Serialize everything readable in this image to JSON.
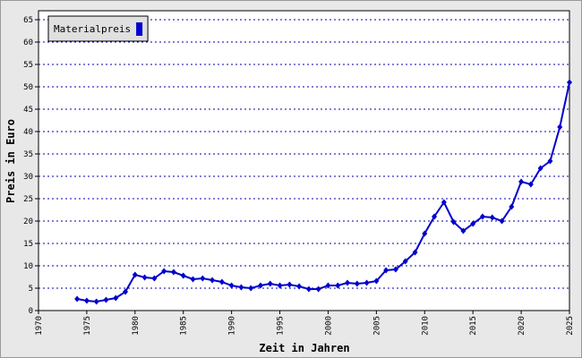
{
  "chart_data": {
    "type": "line",
    "x_label": "Zeit in Jahren",
    "y_label": "Preis in Euro",
    "x": [
      1974,
      1975,
      1976,
      1977,
      1978,
      1979,
      1980,
      1981,
      1982,
      1983,
      1984,
      1985,
      1986,
      1987,
      1988,
      1989,
      1990,
      1991,
      1992,
      1993,
      1994,
      1995,
      1996,
      1997,
      1998,
      1999,
      2000,
      2001,
      2002,
      2003,
      2004,
      2005,
      2006,
      2007,
      2008,
      2009,
      2010,
      2011,
      2012,
      2013,
      2014,
      2015,
      2016,
      2017,
      2018,
      2019,
      2020,
      2021,
      2022,
      2023,
      2024,
      2025
    ],
    "series": [
      {
        "name": "Materialpreis",
        "color": "#0000cc",
        "values": [
          2.6,
          2.2,
          2.0,
          2.4,
          2.8,
          4.2,
          8.0,
          7.4,
          7.2,
          8.8,
          8.6,
          7.8,
          7.0,
          7.2,
          6.8,
          6.4,
          5.6,
          5.2,
          5.0,
          5.6,
          6.0,
          5.6,
          5.8,
          5.4,
          4.8,
          4.8,
          5.6,
          5.6,
          6.2,
          6.0,
          6.2,
          6.6,
          9.0,
          9.2,
          11.0,
          13.0,
          17.2,
          21.0,
          24.2,
          19.8,
          17.8,
          19.4,
          21.0,
          20.8,
          20.0,
          23.2,
          28.8,
          28.2,
          31.8,
          33.4,
          41.0,
          51.0
        ]
      }
    ],
    "xlim": [
      1970,
      2025
    ],
    "xticks": [
      1970,
      1975,
      1980,
      1985,
      1990,
      1995,
      2000,
      2005,
      2010,
      2015,
      2020,
      2025
    ],
    "ylim": [
      0,
      65
    ],
    "yticks": [
      0,
      5,
      10,
      15,
      20,
      25,
      30,
      35,
      40,
      45,
      50,
      55,
      60,
      65
    ],
    "grid": true,
    "legend_position": "upper left"
  }
}
